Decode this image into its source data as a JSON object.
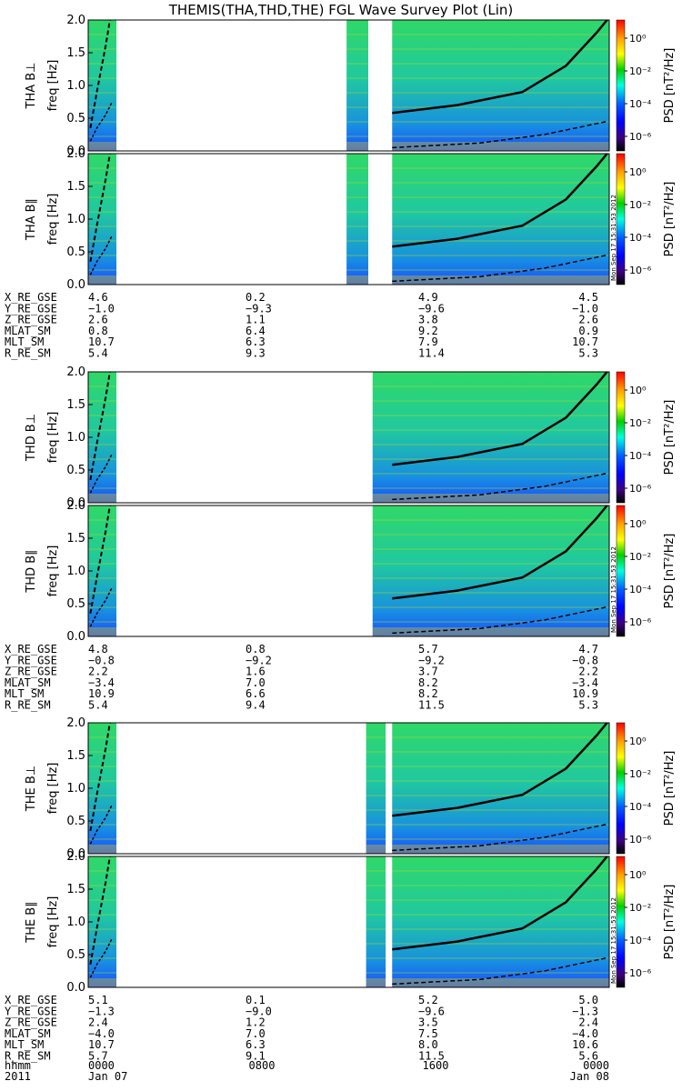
{
  "chart_data": {
    "type": "heatmap",
    "title": "THEMIS(THA,THD,THE) FGL Wave Survey Plot (Lin)",
    "x": {
      "ticks": [
        "0000",
        "0800",
        "1600",
        "0000"
      ],
      "tick_values_hours": [
        0,
        8,
        16,
        24
      ],
      "range_hours": [
        0,
        24
      ]
    },
    "time_labels": {
      "row_label": "hhmm",
      "year": "2011",
      "start_date": "Jan 07",
      "end_date": "Jan 08"
    },
    "colorbar": {
      "label": "PSD [nT²/Hz]",
      "scale": "log",
      "tick_labels": [
        "10⁰",
        "10⁻²",
        "10⁻⁴",
        "10⁻⁶"
      ],
      "colors": [
        "#ff0000",
        "#ffa000",
        "#ffff00",
        "#00d000",
        "#00ffe0",
        "#0060ff",
        "#0000ff",
        "#400080",
        "#000000"
      ]
    },
    "stamp": "Mon Sep 17 15:31:53 2012",
    "probes": [
      {
        "panels": [
          {
            "ylabel": "THA B⊥",
            "sublabel": "freq [Hz]",
            "yticks": [
              "0.0",
              "0.5",
              "1.0",
              "1.5",
              "2.0"
            ],
            "ylim": [
              0,
              2
            ],
            "data_intervals_hours": [
              [
                0,
                1.3
              ],
              [
                11.9,
                12.9
              ],
              [
                14.0,
                24
              ]
            ]
          },
          {
            "ylabel": "THA B∥",
            "sublabel": "freq [Hz]",
            "yticks": [
              "0.0",
              "0.5",
              "1.0",
              "1.5",
              "2.0"
            ],
            "ylim": [
              0,
              2
            ],
            "data_intervals_hours": [
              [
                0,
                1.3
              ],
              [
                11.9,
                12.9
              ],
              [
                14.0,
                24
              ]
            ]
          }
        ],
        "orbit": {
          "rows": [
            "X_RE_GSE",
            "Y_RE_GSE",
            "Z_RE_GSE",
            "MLAT_SM",
            "MLT_SM",
            "R_RE_SM"
          ],
          "values": [
            [
              "4.6",
              "0.2",
              "4.9",
              "4.5"
            ],
            [
              "−1.0",
              "−9.3",
              "−9.6",
              "−1.0"
            ],
            [
              "2.6",
              "1.1",
              "3.8",
              "2.6"
            ],
            [
              "0.8",
              "6.4",
              "9.2",
              "0.9"
            ],
            [
              "10.7",
              "6.3",
              "7.9",
              "10.7"
            ],
            [
              "5.4",
              "9.3",
              "11.4",
              "5.3"
            ]
          ]
        }
      },
      {
        "panels": [
          {
            "ylabel": "THD B⊥",
            "sublabel": "freq [Hz]",
            "yticks": [
              "0.0",
              "0.5",
              "1.0",
              "1.5",
              "2.0"
            ],
            "ylim": [
              0,
              2
            ],
            "data_intervals_hours": [
              [
                0,
                1.3
              ],
              [
                13.1,
                24
              ]
            ]
          },
          {
            "ylabel": "THD B∥",
            "sublabel": "freq [Hz]",
            "yticks": [
              "0.0",
              "0.5",
              "1.0",
              "1.5",
              "2.0"
            ],
            "ylim": [
              0,
              2
            ],
            "data_intervals_hours": [
              [
                0,
                1.3
              ],
              [
                13.1,
                24
              ]
            ]
          }
        ],
        "orbit": {
          "rows": [
            "X_RE_GSE",
            "Y_RE_GSE",
            "Z_RE_GSE",
            "MLAT_SM",
            "MLT_SM",
            "R_RE_SM"
          ],
          "values": [
            [
              "4.8",
              "0.8",
              "5.7",
              "4.7"
            ],
            [
              "−0.8",
              "−9.2",
              "−9.2",
              "−0.8"
            ],
            [
              "2.2",
              "1.6",
              "3.7",
              "2.2"
            ],
            [
              "−3.4",
              "7.0",
              "8.2",
              "−3.4"
            ],
            [
              "10.9",
              "6.6",
              "8.2",
              "10.9"
            ],
            [
              "5.4",
              "9.4",
              "11.5",
              "5.3"
            ]
          ]
        }
      },
      {
        "panels": [
          {
            "ylabel": "THE B⊥",
            "sublabel": "freq [Hz]",
            "yticks": [
              "0.0",
              "0.5",
              "1.0",
              "1.5",
              "2.0"
            ],
            "ylim": [
              0,
              2
            ],
            "data_intervals_hours": [
              [
                0,
                1.3
              ],
              [
                12.8,
                13.7
              ],
              [
                14.0,
                24
              ]
            ]
          },
          {
            "ylabel": "THE B∥",
            "sublabel": "freq [Hz]",
            "yticks": [
              "0.0",
              "0.5",
              "1.0",
              "1.5",
              "2.0"
            ],
            "ylim": [
              0,
              2
            ],
            "data_intervals_hours": [
              [
                0,
                1.3
              ],
              [
                12.8,
                13.7
              ],
              [
                14.0,
                24
              ]
            ]
          }
        ],
        "orbit": {
          "rows": [
            "X_RE_GSE",
            "Y_RE_GSE",
            "Z_RE_GSE",
            "MLAT_SM",
            "MLT_SM",
            "R_RE_SM"
          ],
          "values": [
            [
              "5.1",
              "0.1",
              "5.2",
              "5.0"
            ],
            [
              "−1.3",
              "−9.0",
              "−9.6",
              "−1.3"
            ],
            [
              "2.4",
              "1.2",
              "3.5",
              "2.4"
            ],
            [
              "−4.0",
              "7.0",
              "7.5",
              "−4.0"
            ],
            [
              "10.7",
              "6.3",
              "8.0",
              "10.6"
            ],
            [
              "5.7",
              "9.1",
              "11.5",
              "5.6"
            ]
          ]
        }
      }
    ]
  }
}
